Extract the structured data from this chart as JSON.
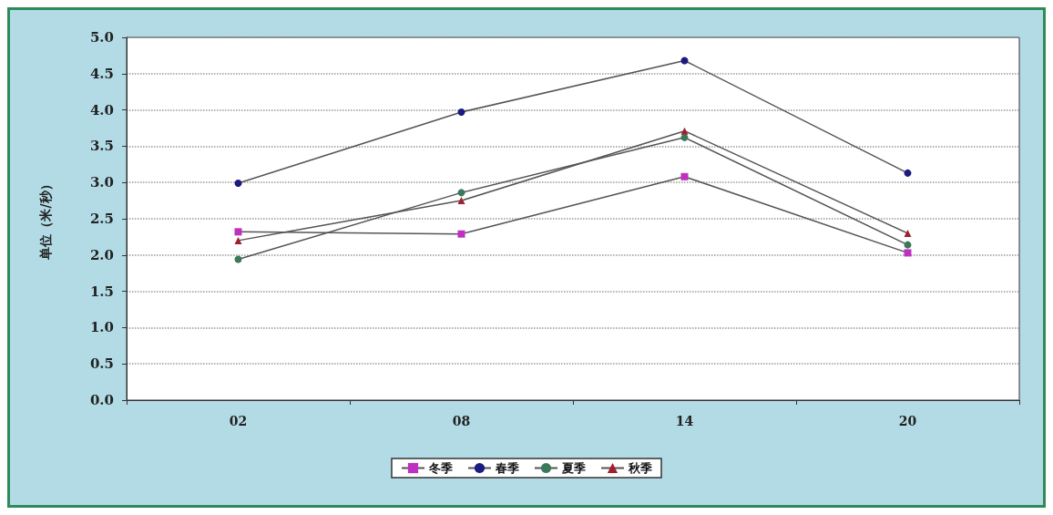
{
  "chart_data": {
    "type": "line",
    "ylabel": "单位（米/秒）",
    "categories": [
      "02",
      "08",
      "14",
      "20"
    ],
    "series": [
      {
        "name": "冬季",
        "color": "#c030c0",
        "marker": "square",
        "values": [
          2.32,
          2.29,
          3.08,
          2.03
        ]
      },
      {
        "name": "春季",
        "color": "#1a1a80",
        "marker": "circle",
        "values": [
          2.99,
          3.97,
          4.68,
          3.13
        ]
      },
      {
        "name": "夏季",
        "color": "#3a7a5a",
        "marker": "circle",
        "values": [
          1.94,
          2.86,
          3.62,
          2.14
        ]
      },
      {
        "name": "秋季",
        "color": "#a02030",
        "marker": "triangle",
        "values": [
          2.2,
          2.75,
          3.71,
          2.3
        ]
      }
    ],
    "ylim": [
      0,
      5
    ],
    "yticks": [
      {
        "value": 0,
        "label": "0.0"
      },
      {
        "value": 0.5,
        "label": "0.5"
      },
      {
        "value": 1,
        "label": "1.0"
      },
      {
        "value": 1.5,
        "label": "1.5"
      },
      {
        "value": 2,
        "label": "2.0"
      },
      {
        "value": 2.5,
        "label": "2.5"
      },
      {
        "value": 3,
        "label": "3.0"
      },
      {
        "value": 3.5,
        "label": "3.5"
      },
      {
        "value": 4,
        "label": "4.0"
      },
      {
        "value": 4.5,
        "label": "4.5"
      },
      {
        "value": 5,
        "label": "5.0"
      }
    ],
    "grid": "y",
    "legend": "bottom",
    "line_style": "solid"
  }
}
